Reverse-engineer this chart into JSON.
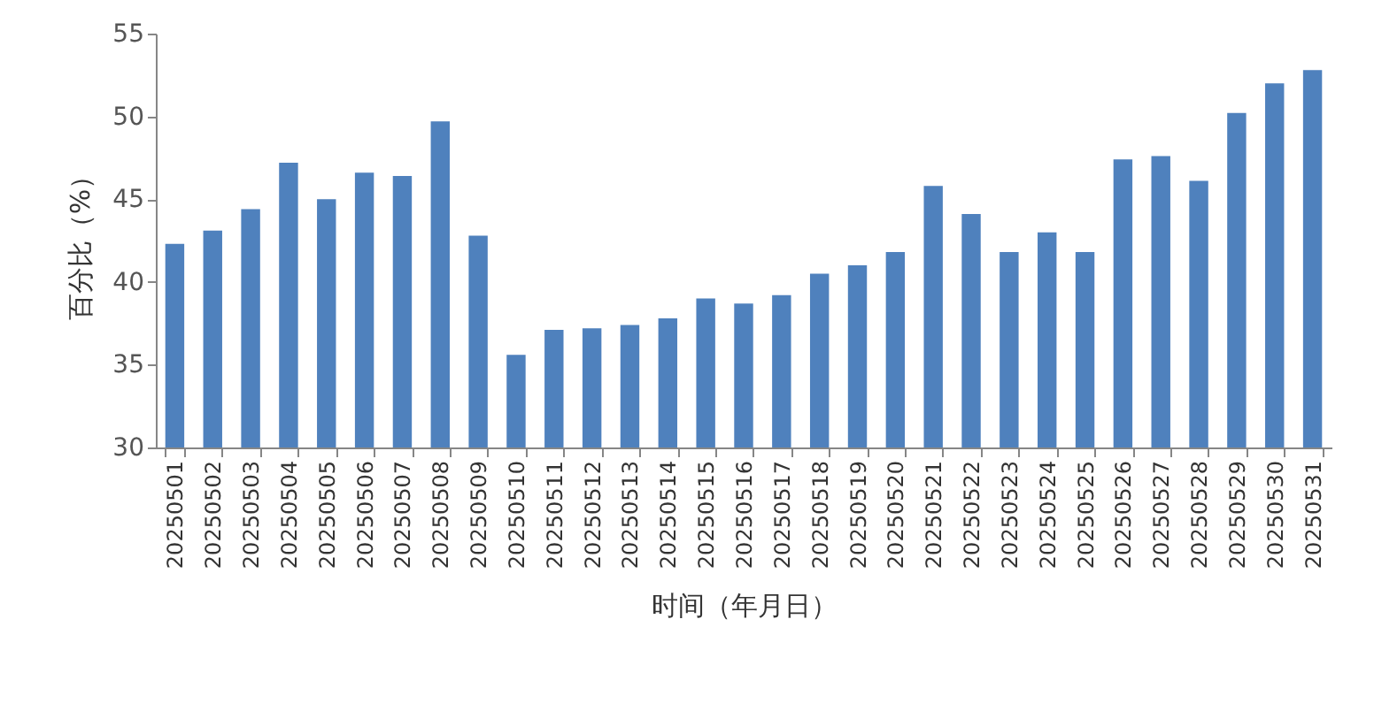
{
  "chart_data": {
    "type": "bar",
    "xlabel": "时间（年月日）",
    "ylabel": "百分比（%）",
    "categories": [
      "20250501",
      "20250502",
      "20250503",
      "20250504",
      "20250505",
      "20250506",
      "20250507",
      "20250508",
      "20250509",
      "20250510",
      "20250511",
      "20250512",
      "20250513",
      "20250514",
      "20250515",
      "20250516",
      "20250517",
      "20250518",
      "20250519",
      "20250520",
      "20250521",
      "20250522",
      "20250523",
      "20250524",
      "20250525",
      "20250526",
      "20250527",
      "20250528",
      "20250529",
      "20250530",
      "20250531"
    ],
    "values": [
      42.3,
      43.1,
      44.4,
      47.2,
      45.0,
      46.6,
      46.4,
      49.7,
      42.8,
      35.6,
      37.1,
      37.2,
      37.4,
      37.8,
      39.0,
      38.7,
      39.2,
      40.5,
      41.0,
      41.8,
      45.8,
      44.1,
      41.8,
      43.0,
      41.8,
      47.4,
      47.6,
      46.1,
      50.2,
      52.0,
      52.8
    ],
    "color": "#4f81bd",
    "ylim": [
      30,
      55
    ],
    "yticks": [
      30,
      35,
      40,
      45,
      50,
      55
    ]
  }
}
